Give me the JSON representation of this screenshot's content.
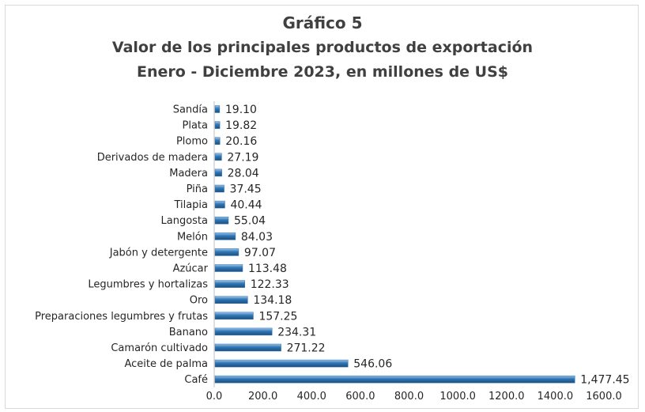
{
  "chart_data": {
    "type": "bar",
    "orientation": "horizontal",
    "title": "Gráfico 5",
    "subtitle_line1": "Valor de los principales productos de exportación",
    "subtitle_line2": "Enero - Diciembre 2023, en millones de US$",
    "xlabel": "",
    "ylabel": "",
    "xlim": [
      0,
      1600
    ],
    "x_ticks": [
      "0.0",
      "200.0",
      "400.0",
      "600.0",
      "800.0",
      "1000.0",
      "1200.0",
      "1400.0",
      "1600.0"
    ],
    "grid": false,
    "legend": "none",
    "bar_color": "#2e75b6",
    "categories": [
      "Sandía",
      "Plata",
      "Plomo",
      "Derivados de madera",
      "Madera",
      "Piña",
      "Tilapia",
      "Langosta",
      "Melón",
      "Jabón y detergente",
      "Azúcar",
      "Legumbres y hortalizas",
      "Oro",
      "Preparaciones legumbres y frutas",
      "Banano",
      "Camarón cultivado",
      "Aceite de palma",
      "Café"
    ],
    "values": [
      19.1,
      19.82,
      20.16,
      27.19,
      28.04,
      37.45,
      40.44,
      55.04,
      84.03,
      97.07,
      113.48,
      122.33,
      134.18,
      157.25,
      234.31,
      271.22,
      546.06,
      1477.45
    ],
    "data_labels": [
      "19.10",
      "19.82",
      "20.16",
      "27.19",
      "28.04",
      "37.45",
      "40.44",
      "55.04",
      "84.03",
      "97.07",
      "113.48",
      "122.33",
      "134.18",
      "157.25",
      "234.31",
      "271.22",
      "546.06",
      "1,477.45"
    ]
  }
}
